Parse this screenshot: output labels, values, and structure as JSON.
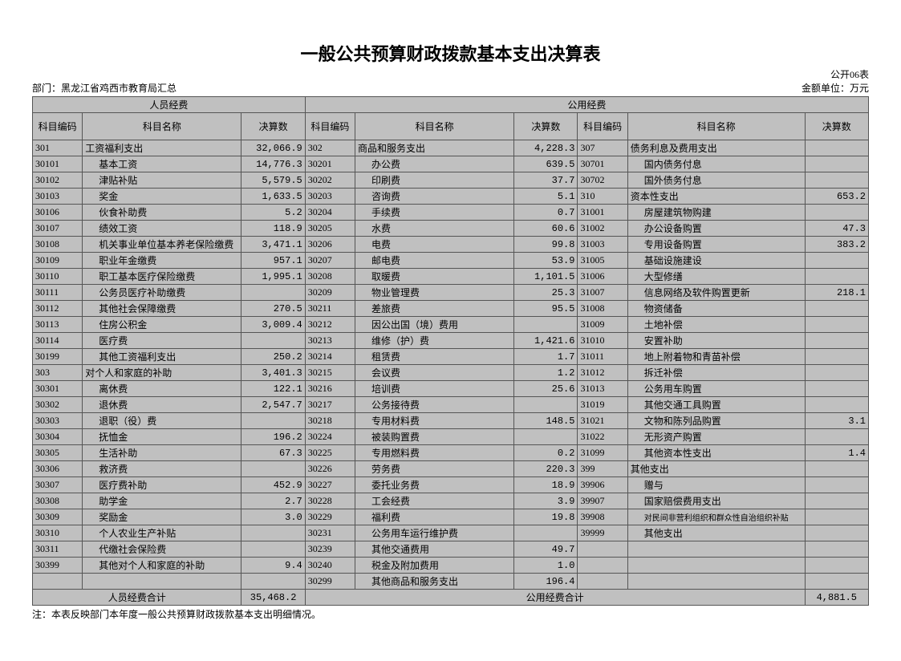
{
  "title": "一般公共预算财政拨款基本支出决算表",
  "form_no": "公开06表",
  "dept_label": "部门：",
  "dept_value": "黑龙江省鸡西市教育局汇总",
  "unit_label": "金额单位：万元",
  "group1_header": "人员经费",
  "group2_header": "公用经费",
  "col_code": "科目编码",
  "col_name": "科目名称",
  "col_val": "决算数",
  "rows": [
    {
      "c1": "301",
      "n1": "工资福利支出",
      "v1": "32,066.9",
      "c2": "302",
      "n2": "商品和服务支出",
      "v2": "4,228.3",
      "c3": "307",
      "n3": "债务利息及费用支出",
      "v3": ""
    },
    {
      "c1": "30101",
      "n1": "基本工资",
      "v1": "14,776.3",
      "i1": true,
      "c2": "30201",
      "n2": "办公费",
      "v2": "639.5",
      "i2": true,
      "c3": "30701",
      "n3": "国内债务付息",
      "v3": "",
      "i3": true
    },
    {
      "c1": "30102",
      "n1": "津贴补贴",
      "v1": "5,579.5",
      "i1": true,
      "c2": "30202",
      "n2": "印刷费",
      "v2": "37.7",
      "i2": true,
      "c3": "30702",
      "n3": "国外债务付息",
      "v3": "",
      "i3": true
    },
    {
      "c1": "30103",
      "n1": "奖金",
      "v1": "1,633.5",
      "i1": true,
      "c2": "30203",
      "n2": "咨询费",
      "v2": "5.1",
      "i2": true,
      "c3": "310",
      "n3": "资本性支出",
      "v3": "653.2"
    },
    {
      "c1": "30106",
      "n1": "伙食补助费",
      "v1": "5.2",
      "i1": true,
      "c2": "30204",
      "n2": "手续费",
      "v2": "0.7",
      "i2": true,
      "c3": "31001",
      "n3": "房屋建筑物购建",
      "v3": "",
      "i3": true
    },
    {
      "c1": "30107",
      "n1": "绩效工资",
      "v1": "118.9",
      "i1": true,
      "c2": "30205",
      "n2": "水费",
      "v2": "60.6",
      "i2": true,
      "c3": "31002",
      "n3": "办公设备购置",
      "v3": "47.3",
      "i3": true
    },
    {
      "c1": "30108",
      "n1": "机关事业单位基本养老保险缴费",
      "v1": "3,471.1",
      "i1": true,
      "c2": "30206",
      "n2": "电费",
      "v2": "99.8",
      "i2": true,
      "c3": "31003",
      "n3": "专用设备购置",
      "v3": "383.2",
      "i3": true
    },
    {
      "c1": "30109",
      "n1": "职业年金缴费",
      "v1": "957.1",
      "i1": true,
      "c2": "30207",
      "n2": "邮电费",
      "v2": "53.9",
      "i2": true,
      "c3": "31005",
      "n3": "基础设施建设",
      "v3": "",
      "i3": true
    },
    {
      "c1": "30110",
      "n1": "职工基本医疗保险缴费",
      "v1": "1,995.1",
      "i1": true,
      "c2": "30208",
      "n2": "取暖费",
      "v2": "1,101.5",
      "i2": true,
      "c3": "31006",
      "n3": "大型修缮",
      "v3": "",
      "i3": true
    },
    {
      "c1": "30111",
      "n1": "公务员医疗补助缴费",
      "v1": "",
      "i1": true,
      "c2": "30209",
      "n2": "物业管理费",
      "v2": "25.3",
      "i2": true,
      "c3": "31007",
      "n3": "信息网络及软件购置更新",
      "v3": "218.1",
      "i3": true
    },
    {
      "c1": "30112",
      "n1": "其他社会保障缴费",
      "v1": "270.5",
      "i1": true,
      "c2": "30211",
      "n2": "差旅费",
      "v2": "95.5",
      "i2": true,
      "c3": "31008",
      "n3": "物资储备",
      "v3": "",
      "i3": true
    },
    {
      "c1": "30113",
      "n1": "住房公积金",
      "v1": "3,009.4",
      "i1": true,
      "c2": "30212",
      "n2": "因公出国（境）费用",
      "v2": "",
      "i2": true,
      "c3": "31009",
      "n3": "土地补偿",
      "v3": "",
      "i3": true
    },
    {
      "c1": "30114",
      "n1": "医疗费",
      "v1": "",
      "i1": true,
      "c2": "30213",
      "n2": "维修（护）费",
      "v2": "1,421.6",
      "i2": true,
      "c3": "31010",
      "n3": "安置补助",
      "v3": "",
      "i3": true
    },
    {
      "c1": "30199",
      "n1": "其他工资福利支出",
      "v1": "250.2",
      "i1": true,
      "c2": "30214",
      "n2": "租赁费",
      "v2": "1.7",
      "i2": true,
      "c3": "31011",
      "n3": "地上附着物和青苗补偿",
      "v3": "",
      "i3": true
    },
    {
      "c1": "303",
      "n1": "对个人和家庭的补助",
      "v1": "3,401.3",
      "c2": "30215",
      "n2": "会议费",
      "v2": "1.2",
      "i2": true,
      "c3": "31012",
      "n3": "拆迁补偿",
      "v3": "",
      "i3": true
    },
    {
      "c1": "30301",
      "n1": "离休费",
      "v1": "122.1",
      "i1": true,
      "c2": "30216",
      "n2": "培训费",
      "v2": "25.6",
      "i2": true,
      "c3": "31013",
      "n3": "公务用车购置",
      "v3": "",
      "i3": true
    },
    {
      "c1": "30302",
      "n1": "退休费",
      "v1": "2,547.7",
      "i1": true,
      "c2": "30217",
      "n2": "公务接待费",
      "v2": "",
      "i2": true,
      "c3": "31019",
      "n3": "其他交通工具购置",
      "v3": "",
      "i3": true
    },
    {
      "c1": "30303",
      "n1": "退职（役）费",
      "v1": "",
      "i1": true,
      "c2": "30218",
      "n2": "专用材料费",
      "v2": "148.5",
      "i2": true,
      "c3": "31021",
      "n3": "文物和陈列品购置",
      "v3": "3.1",
      "i3": true
    },
    {
      "c1": "30304",
      "n1": "抚恤金",
      "v1": "196.2",
      "i1": true,
      "c2": "30224",
      "n2": "被装购置费",
      "v2": "",
      "i2": true,
      "c3": "31022",
      "n3": "无形资产购置",
      "v3": "",
      "i3": true
    },
    {
      "c1": "30305",
      "n1": "生活补助",
      "v1": "67.3",
      "i1": true,
      "c2": "30225",
      "n2": "专用燃料费",
      "v2": "0.2",
      "i2": true,
      "c3": "31099",
      "n3": "其他资本性支出",
      "v3": "1.4",
      "i3": true
    },
    {
      "c1": "30306",
      "n1": "救济费",
      "v1": "",
      "i1": true,
      "c2": "30226",
      "n2": "劳务费",
      "v2": "220.3",
      "i2": true,
      "c3": "399",
      "n3": "其他支出",
      "v3": ""
    },
    {
      "c1": "30307",
      "n1": "医疗费补助",
      "v1": "452.9",
      "i1": true,
      "c2": "30227",
      "n2": "委托业务费",
      "v2": "18.9",
      "i2": true,
      "c3": "39906",
      "n3": "赠与",
      "v3": "",
      "i3": true
    },
    {
      "c1": "30308",
      "n1": "助学金",
      "v1": "2.7",
      "i1": true,
      "c2": "30228",
      "n2": "工会经费",
      "v2": "3.9",
      "i2": true,
      "c3": "39907",
      "n3": "国家赔偿费用支出",
      "v3": "",
      "i3": true
    },
    {
      "c1": "30309",
      "n1": "奖励金",
      "v1": "3.0",
      "i1": true,
      "c2": "30229",
      "n2": "福利费",
      "v2": "19.8",
      "i2": true,
      "c3": "39908",
      "n3": "对民间非营利组织和群众性自治组织补贴",
      "v3": "",
      "i3": true,
      "s3": true
    },
    {
      "c1": "30310",
      "n1": "个人农业生产补贴",
      "v1": "",
      "i1": true,
      "c2": "30231",
      "n2": "公务用车运行维护费",
      "v2": "",
      "i2": true,
      "c3": "39999",
      "n3": "其他支出",
      "v3": "",
      "i3": true
    },
    {
      "c1": "30311",
      "n1": "代缴社会保险费",
      "v1": "",
      "i1": true,
      "c2": "30239",
      "n2": "其他交通费用",
      "v2": "49.7",
      "i2": true,
      "c3": "",
      "n3": "",
      "v3": ""
    },
    {
      "c1": "30399",
      "n1": "其他对个人和家庭的补助",
      "v1": "9.4",
      "i1": true,
      "c2": "30240",
      "n2": "税金及附加费用",
      "v2": "1.0",
      "i2": true,
      "c3": "",
      "n3": "",
      "v3": ""
    },
    {
      "c1": "",
      "n1": "",
      "v1": "",
      "c2": "30299",
      "n2": "其他商品和服务支出",
      "v2": "196.4",
      "i2": true,
      "c3": "",
      "n3": "",
      "v3": ""
    }
  ],
  "total1_label": "人员经费合计",
  "total1_value": "35,468.2",
  "total2_label": "公用经费合计",
  "total2_value": "4,881.5",
  "note": "注：本表反映部门本年度一般公共预算财政拨款基本支出明细情况。",
  "colors": {
    "header_bg": "#c0c0c0",
    "cell_bg": "#c0c0c0",
    "border": "#555555",
    "page_bg": "#ffffff"
  }
}
